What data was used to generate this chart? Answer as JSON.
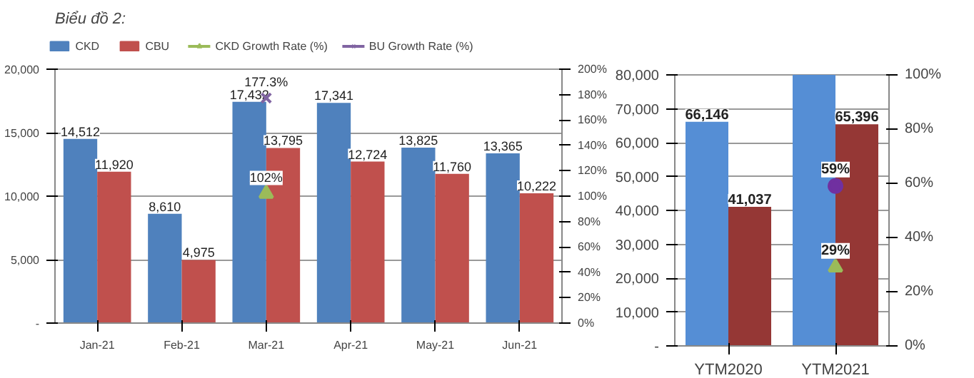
{
  "chart_data": [
    {
      "type": "bar",
      "title": "Biểu đồ 2:",
      "categories": [
        "Jan-21",
        "Feb-21",
        "Mar-21",
        "Apr-21",
        "May-21",
        "Jun-21"
      ],
      "series": [
        {
          "name": "CKD",
          "color": "#4f81bd",
          "values": [
            14512,
            8610,
            17432,
            17341,
            13825,
            13365
          ],
          "value_labels": [
            "14,512",
            "8,610",
            "17,432",
            "17,341",
            "13,825",
            "13,365"
          ]
        },
        {
          "name": "CBU",
          "color": "#c0504d",
          "values": [
            11920,
            4975,
            13795,
            12724,
            11760,
            10222
          ],
          "value_labels": [
            "11,920",
            "4,975",
            "13,795",
            "12,724",
            "11,760",
            "10,222"
          ]
        },
        {
          "name": "CKD Growth Rate (%)",
          "type": "line",
          "axis": "y2",
          "marker": "triangle",
          "color": "#9bbb59",
          "values": [
            null,
            null,
            102,
            null,
            null,
            null
          ],
          "value_labels": [
            null,
            null,
            "102%",
            null,
            null,
            null
          ]
        },
        {
          "name": "BU Growth Rate (%)",
          "type": "line",
          "axis": "y2",
          "marker": "cross",
          "color": "#8064a2",
          "values": [
            null,
            null,
            177.3,
            null,
            null,
            null
          ],
          "value_labels": [
            null,
            null,
            "177.3%",
            null,
            null,
            null
          ]
        }
      ],
      "ylim": [
        0,
        20000
      ],
      "yticks": [
        {
          "value": 0,
          "label": "-"
        },
        {
          "value": 5000,
          "label": "5,000"
        },
        {
          "value": 10000,
          "label": "10,000"
        },
        {
          "value": 15000,
          "label": "15,000"
        },
        {
          "value": 20000,
          "label": "20,000"
        }
      ],
      "y2lim": [
        0,
        200
      ],
      "y2ticks": [
        {
          "value": 0,
          "label": "0%"
        },
        {
          "value": 20,
          "label": "20%"
        },
        {
          "value": 40,
          "label": "40%"
        },
        {
          "value": 60,
          "label": "60%"
        },
        {
          "value": 80,
          "label": "80%"
        },
        {
          "value": 100,
          "label": "100%"
        },
        {
          "value": 120,
          "label": "120%"
        },
        {
          "value": 140,
          "label": "140%"
        },
        {
          "value": 160,
          "label": "160%"
        },
        {
          "value": 180,
          "label": "180%"
        },
        {
          "value": 200,
          "label": "200%"
        }
      ],
      "grid": "y",
      "legend": "top"
    },
    {
      "type": "bar",
      "categories": [
        "YTM2020",
        "YTM2021"
      ],
      "series": [
        {
          "color": "#558ed5",
          "values": [
            66146,
            80000
          ],
          "value_labels": [
            "66,146",
            null
          ]
        },
        {
          "color": "#953735",
          "values": [
            41037,
            65396
          ],
          "value_labels": [
            "41,037",
            "65,396"
          ]
        },
        {
          "type": "scatter",
          "axis": "y2",
          "marker": "triangle",
          "color": "#9bbb59",
          "values": [
            null,
            29
          ],
          "value_labels": [
            null,
            "29%"
          ]
        },
        {
          "type": "scatter",
          "axis": "y2",
          "marker": "circle",
          "color": "#7030a0",
          "values": [
            null,
            59
          ],
          "value_labels": [
            null,
            "59%"
          ]
        }
      ],
      "ylim": [
        0,
        80000
      ],
      "yticks": [
        {
          "value": 0,
          "label": "-"
        },
        {
          "value": 10000,
          "label": "10,000"
        },
        {
          "value": 20000,
          "label": "20,000"
        },
        {
          "value": 30000,
          "label": "30,000"
        },
        {
          "value": 40000,
          "label": "40,000"
        },
        {
          "value": 50000,
          "label": "50,000"
        },
        {
          "value": 60000,
          "label": "60,000"
        },
        {
          "value": 70000,
          "label": "70,000"
        },
        {
          "value": 80000,
          "label": "80,000"
        }
      ],
      "y2lim": [
        0,
        100
      ],
      "y2ticks": [
        {
          "value": 0,
          "label": "0%"
        },
        {
          "value": 20,
          "label": "20%"
        },
        {
          "value": 40,
          "label": "40%"
        },
        {
          "value": 60,
          "label": "60%"
        },
        {
          "value": 80,
          "label": "80%"
        },
        {
          "value": 100,
          "label": "100%"
        }
      ],
      "grid": "y"
    }
  ]
}
